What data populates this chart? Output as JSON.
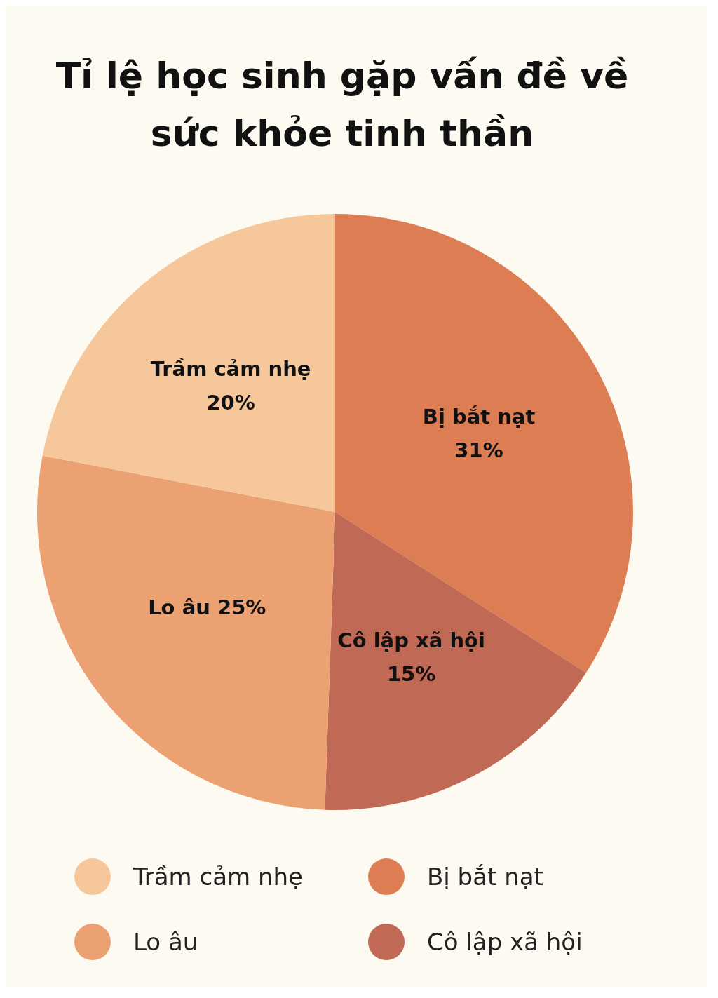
{
  "chart_data": {
    "type": "pie",
    "title": "Tỉ lệ học sinh gặp vấn đề về sức khỏe tinh thần",
    "categories": [
      "Bị bắt nạt",
      "Cô lập xã hội",
      "Lo âu",
      "Trầm cảm nhẹ"
    ],
    "values": [
      31,
      15,
      25,
      20
    ],
    "colors": [
      "#dc7d54",
      "#c06a56",
      "#eca173",
      "#f5c79a"
    ],
    "value_labels": [
      "31%",
      "15%",
      "25%",
      "20%"
    ],
    "legend": "bottom"
  }
}
